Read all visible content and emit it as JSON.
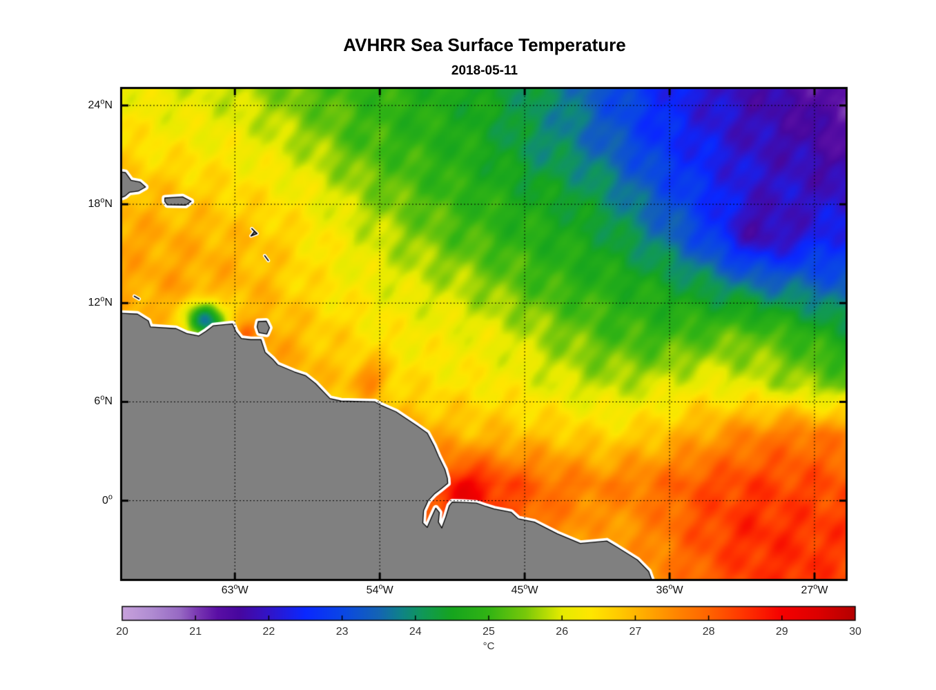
{
  "chart_data": {
    "type": "heatmap",
    "title": "AVHRR Sea Surface Temperature",
    "subtitle": "2018-05-11",
    "axes": {
      "xlim_degW": [
        70,
        25.07
      ],
      "ylim_degN": [
        -4.75,
        25.0
      ],
      "xticks": [
        {
          "value": "63",
          "sup": "o",
          "suffix": "W",
          "lon": 63
        },
        {
          "value": "54",
          "sup": "o",
          "suffix": "W",
          "lon": 54
        },
        {
          "value": "45",
          "sup": "o",
          "suffix": "W",
          "lon": 45
        },
        {
          "value": "36",
          "sup": "o",
          "suffix": "W",
          "lon": 36
        },
        {
          "value": "27",
          "sup": "o",
          "suffix": "W",
          "lon": 27
        }
      ],
      "yticks": [
        {
          "value": "24",
          "sup": "o",
          "suffix": "N",
          "lat": 24
        },
        {
          "value": "18",
          "sup": "o",
          "suffix": "N",
          "lat": 18
        },
        {
          "value": "12",
          "sup": "o",
          "suffix": "N",
          "lat": 12
        },
        {
          "value": "6",
          "sup": "o",
          "suffix": "N",
          "lat": 6
        },
        {
          "value": "0",
          "sup": "o",
          "suffix": "",
          "lat": 0
        }
      ],
      "grid_style": "dotted"
    },
    "field": {
      "lon_degW": [
        70,
        67,
        64,
        61,
        58,
        55,
        52,
        49,
        46,
        43,
        40,
        37,
        34,
        31,
        28,
        25
      ],
      "lat_degN": [
        25,
        22,
        19,
        16,
        13,
        10,
        7,
        4,
        1,
        -2,
        -5
      ],
      "sst_c": [
        [
          26.2,
          26.0,
          25.9,
          25.6,
          25.2,
          25.0,
          24.8,
          24.6,
          24.4,
          24.0,
          23.2,
          22.6,
          22.1,
          21.8,
          21.5,
          21.2
        ],
        [
          26.5,
          26.3,
          26.2,
          26.0,
          25.6,
          25.1,
          24.9,
          24.7,
          24.5,
          24.2,
          23.4,
          22.7,
          22.3,
          21.9,
          21.7,
          21.4
        ],
        [
          26.9,
          26.8,
          26.6,
          26.4,
          26.1,
          25.6,
          25.2,
          24.9,
          24.7,
          24.5,
          24.0,
          23.2,
          22.6,
          22.2,
          22.0,
          21.8
        ],
        [
          27.2,
          27.1,
          27.0,
          26.8,
          26.4,
          26.0,
          25.6,
          25.2,
          24.9,
          24.7,
          24.4,
          23.8,
          23.0,
          22.4,
          22.2,
          22.5
        ],
        [
          27.1,
          27.2,
          27.1,
          26.9,
          26.5,
          26.2,
          26.0,
          25.8,
          25.4,
          25.0,
          24.8,
          24.6,
          24.2,
          23.8,
          23.6,
          23.3
        ],
        [
          27.0,
          26.7,
          26.6,
          27.2,
          26.8,
          26.5,
          26.3,
          26.2,
          26.0,
          25.6,
          25.2,
          25.0,
          25.2,
          25.4,
          25.0,
          24.5
        ],
        [
          27.0,
          27.0,
          27.2,
          27.4,
          27.0,
          26.6,
          26.5,
          26.4,
          26.3,
          26.0,
          25.8,
          25.9,
          26.2,
          26.0,
          25.7,
          25.4
        ],
        [
          27.0,
          27.0,
          27.2,
          27.3,
          27.0,
          26.8,
          27.2,
          27.0,
          26.9,
          26.8,
          26.6,
          26.8,
          27.2,
          27.6,
          27.8,
          27.6
        ],
        [
          27.0,
          27.0,
          27.0,
          27.2,
          27.4,
          27.6,
          27.8,
          28.5,
          28.3,
          27.8,
          27.6,
          27.8,
          28.2,
          28.4,
          28.3,
          28.2
        ],
        [
          27.0,
          27.0,
          27.0,
          27.0,
          27.2,
          27.4,
          28.0,
          28.5,
          28.2,
          27.6,
          27.2,
          27.6,
          28.2,
          28.6,
          28.5,
          28.4
        ],
        [
          27.0,
          27.0,
          27.0,
          27.0,
          27.3,
          27.5,
          28.0,
          28.2,
          27.8,
          27.2,
          26.9,
          27.4,
          28.0,
          28.4,
          28.6,
          28.3
        ]
      ],
      "anomalies": [
        {
          "lon": 64.8,
          "lat": 11.0,
          "amp": -3.2,
          "sigma": 0.75
        },
        {
          "lon": 62.4,
          "lat": 10.1,
          "amp": 0.9,
          "sigma": 0.45
        },
        {
          "lon": 54.6,
          "lat": 7.4,
          "amp": 1.0,
          "sigma": 0.8
        },
        {
          "lon": 48.6,
          "lat": 0.5,
          "amp": 0.6,
          "sigma": 1.1
        },
        {
          "lon": 30.5,
          "lat": 16.2,
          "amp": -0.6,
          "sigma": 1.6
        },
        {
          "lon": 44.0,
          "lat": 21.5,
          "amp": -0.3,
          "sigma": 2.0
        }
      ],
      "noise_amp": 0.3
    },
    "land": {
      "mainland": [
        [
          70.6,
          11.4
        ],
        [
          69.05,
          11.33
        ],
        [
          68.38,
          10.92
        ],
        [
          68.25,
          10.55
        ],
        [
          66.65,
          10.45
        ],
        [
          66.0,
          10.15
        ],
        [
          65.25,
          10.0
        ],
        [
          64.8,
          10.28
        ],
        [
          64.35,
          10.62
        ],
        [
          63.15,
          10.74
        ],
        [
          62.95,
          10.28
        ],
        [
          62.6,
          9.85
        ],
        [
          62.0,
          9.78
        ],
        [
          61.38,
          9.78
        ],
        [
          61.12,
          9.0
        ],
        [
          60.66,
          8.6
        ],
        [
          60.35,
          8.25
        ],
        [
          59.3,
          7.82
        ],
        [
          58.62,
          7.6
        ],
        [
          58.0,
          7.12
        ],
        [
          57.1,
          6.2
        ],
        [
          56.4,
          6.05
        ],
        [
          54.3,
          6.0
        ],
        [
          53.9,
          5.78
        ],
        [
          53.0,
          5.4
        ],
        [
          51.7,
          4.55
        ],
        [
          51.05,
          4.1
        ],
        [
          50.62,
          3.3
        ],
        [
          50.36,
          2.7
        ],
        [
          49.96,
          1.9
        ],
        [
          49.8,
          1.35
        ],
        [
          49.78,
          1.05
        ],
        [
          50.2,
          0.72
        ],
        [
          50.62,
          0.4
        ],
        [
          51.0,
          0.0
        ],
        [
          51.28,
          -0.6
        ],
        [
          51.33,
          -1.35
        ],
        [
          51.05,
          -1.62
        ],
        [
          50.78,
          -1.0
        ],
        [
          50.52,
          -0.45
        ],
        [
          50.3,
          -0.72
        ],
        [
          50.36,
          -1.3
        ],
        [
          50.15,
          -1.66
        ],
        [
          49.9,
          -1.0
        ],
        [
          49.68,
          -0.3
        ],
        [
          49.5,
          -0.08
        ],
        [
          48.8,
          -0.1
        ],
        [
          48.0,
          -0.15
        ],
        [
          47.4,
          -0.35
        ],
        [
          46.9,
          -0.5
        ],
        [
          45.85,
          -0.7
        ],
        [
          45.4,
          -1.1
        ],
        [
          44.4,
          -1.3
        ],
        [
          43.0,
          -2.0
        ],
        [
          41.55,
          -2.6
        ],
        [
          39.9,
          -2.45
        ],
        [
          39.3,
          -2.8
        ],
        [
          38.0,
          -3.6
        ],
        [
          37.3,
          -4.3
        ],
        [
          36.9,
          -5.4
        ],
        [
          70.6,
          -5.4
        ]
      ],
      "hispaniola": [
        [
          70.5,
          20.05
        ],
        [
          69.8,
          19.92
        ],
        [
          69.45,
          19.45
        ],
        [
          68.9,
          19.35
        ],
        [
          68.55,
          19.05
        ],
        [
          69.0,
          18.8
        ],
        [
          69.55,
          18.73
        ],
        [
          69.82,
          18.5
        ],
        [
          70.5,
          18.25
        ]
      ],
      "puerto_rico": [
        [
          67.35,
          18.38
        ],
        [
          66.25,
          18.45
        ],
        [
          65.72,
          18.18
        ],
        [
          66.05,
          17.95
        ],
        [
          67.2,
          17.97
        ],
        [
          67.35,
          18.18
        ]
      ],
      "trinidad": [
        [
          61.55,
          10.88
        ],
        [
          61.05,
          10.9
        ],
        [
          60.85,
          10.5
        ],
        [
          61.02,
          10.12
        ],
        [
          61.5,
          10.2
        ],
        [
          61.62,
          10.55
        ]
      ],
      "islets": [
        [
          [
            61.95,
            16.52
          ],
          [
            61.62,
            16.22
          ],
          [
            62.0,
            16.08
          ],
          [
            61.78,
            16.35
          ]
        ],
        [
          [
            61.15,
            14.88
          ],
          [
            60.92,
            14.58
          ]
        ],
        [
          [
            69.25,
            12.42
          ],
          [
            68.95,
            12.25
          ]
        ]
      ]
    },
    "colorbar": {
      "min": 20,
      "max": 30,
      "tick_labels": [
        "20",
        "21",
        "22",
        "23",
        "24",
        "25",
        "26",
        "27",
        "28",
        "29",
        "30"
      ],
      "inner_ticks": [
        21,
        22,
        23,
        24,
        25,
        26,
        27,
        28,
        29
      ],
      "unit_label": "°C",
      "colormap": [
        {
          "t": 20.0,
          "c": "#c8a2dc"
        },
        {
          "t": 20.4,
          "c": "#b08cd2"
        },
        {
          "t": 20.8,
          "c": "#9668c3"
        },
        {
          "t": 21.0,
          "c": "#7d3cb4"
        },
        {
          "t": 21.3,
          "c": "#5a0fa5"
        },
        {
          "t": 21.6,
          "c": "#47079f"
        },
        {
          "t": 22.0,
          "c": "#3214c8"
        },
        {
          "t": 22.5,
          "c": "#0a28ff"
        },
        {
          "t": 23.0,
          "c": "#0a46e6"
        },
        {
          "t": 23.5,
          "c": "#1464b4"
        },
        {
          "t": 23.8,
          "c": "#0f8289"
        },
        {
          "t": 24.1,
          "c": "#109858"
        },
        {
          "t": 24.5,
          "c": "#16a51e"
        },
        {
          "t": 25.0,
          "c": "#32b414"
        },
        {
          "t": 25.5,
          "c": "#78c80a"
        },
        {
          "t": 26.0,
          "c": "#e6eb00"
        },
        {
          "t": 26.4,
          "c": "#ffe600"
        },
        {
          "t": 26.8,
          "c": "#ffc800"
        },
        {
          "t": 27.2,
          "c": "#ffa500"
        },
        {
          "t": 27.6,
          "c": "#ff8200"
        },
        {
          "t": 28.0,
          "c": "#ff6400"
        },
        {
          "t": 28.5,
          "c": "#ff3200"
        },
        {
          "t": 29.0,
          "c": "#f50000"
        },
        {
          "t": 29.5,
          "c": "#dc0000"
        },
        {
          "t": 30.0,
          "c": "#b40000"
        }
      ]
    },
    "colors": {
      "land": "#808080",
      "coast_halo": "#ffffff",
      "coast_line": "#000000",
      "axis": "#000000",
      "map_tick_label": "#111111",
      "cb_tick_label": "#333333",
      "title": "#000000"
    }
  }
}
